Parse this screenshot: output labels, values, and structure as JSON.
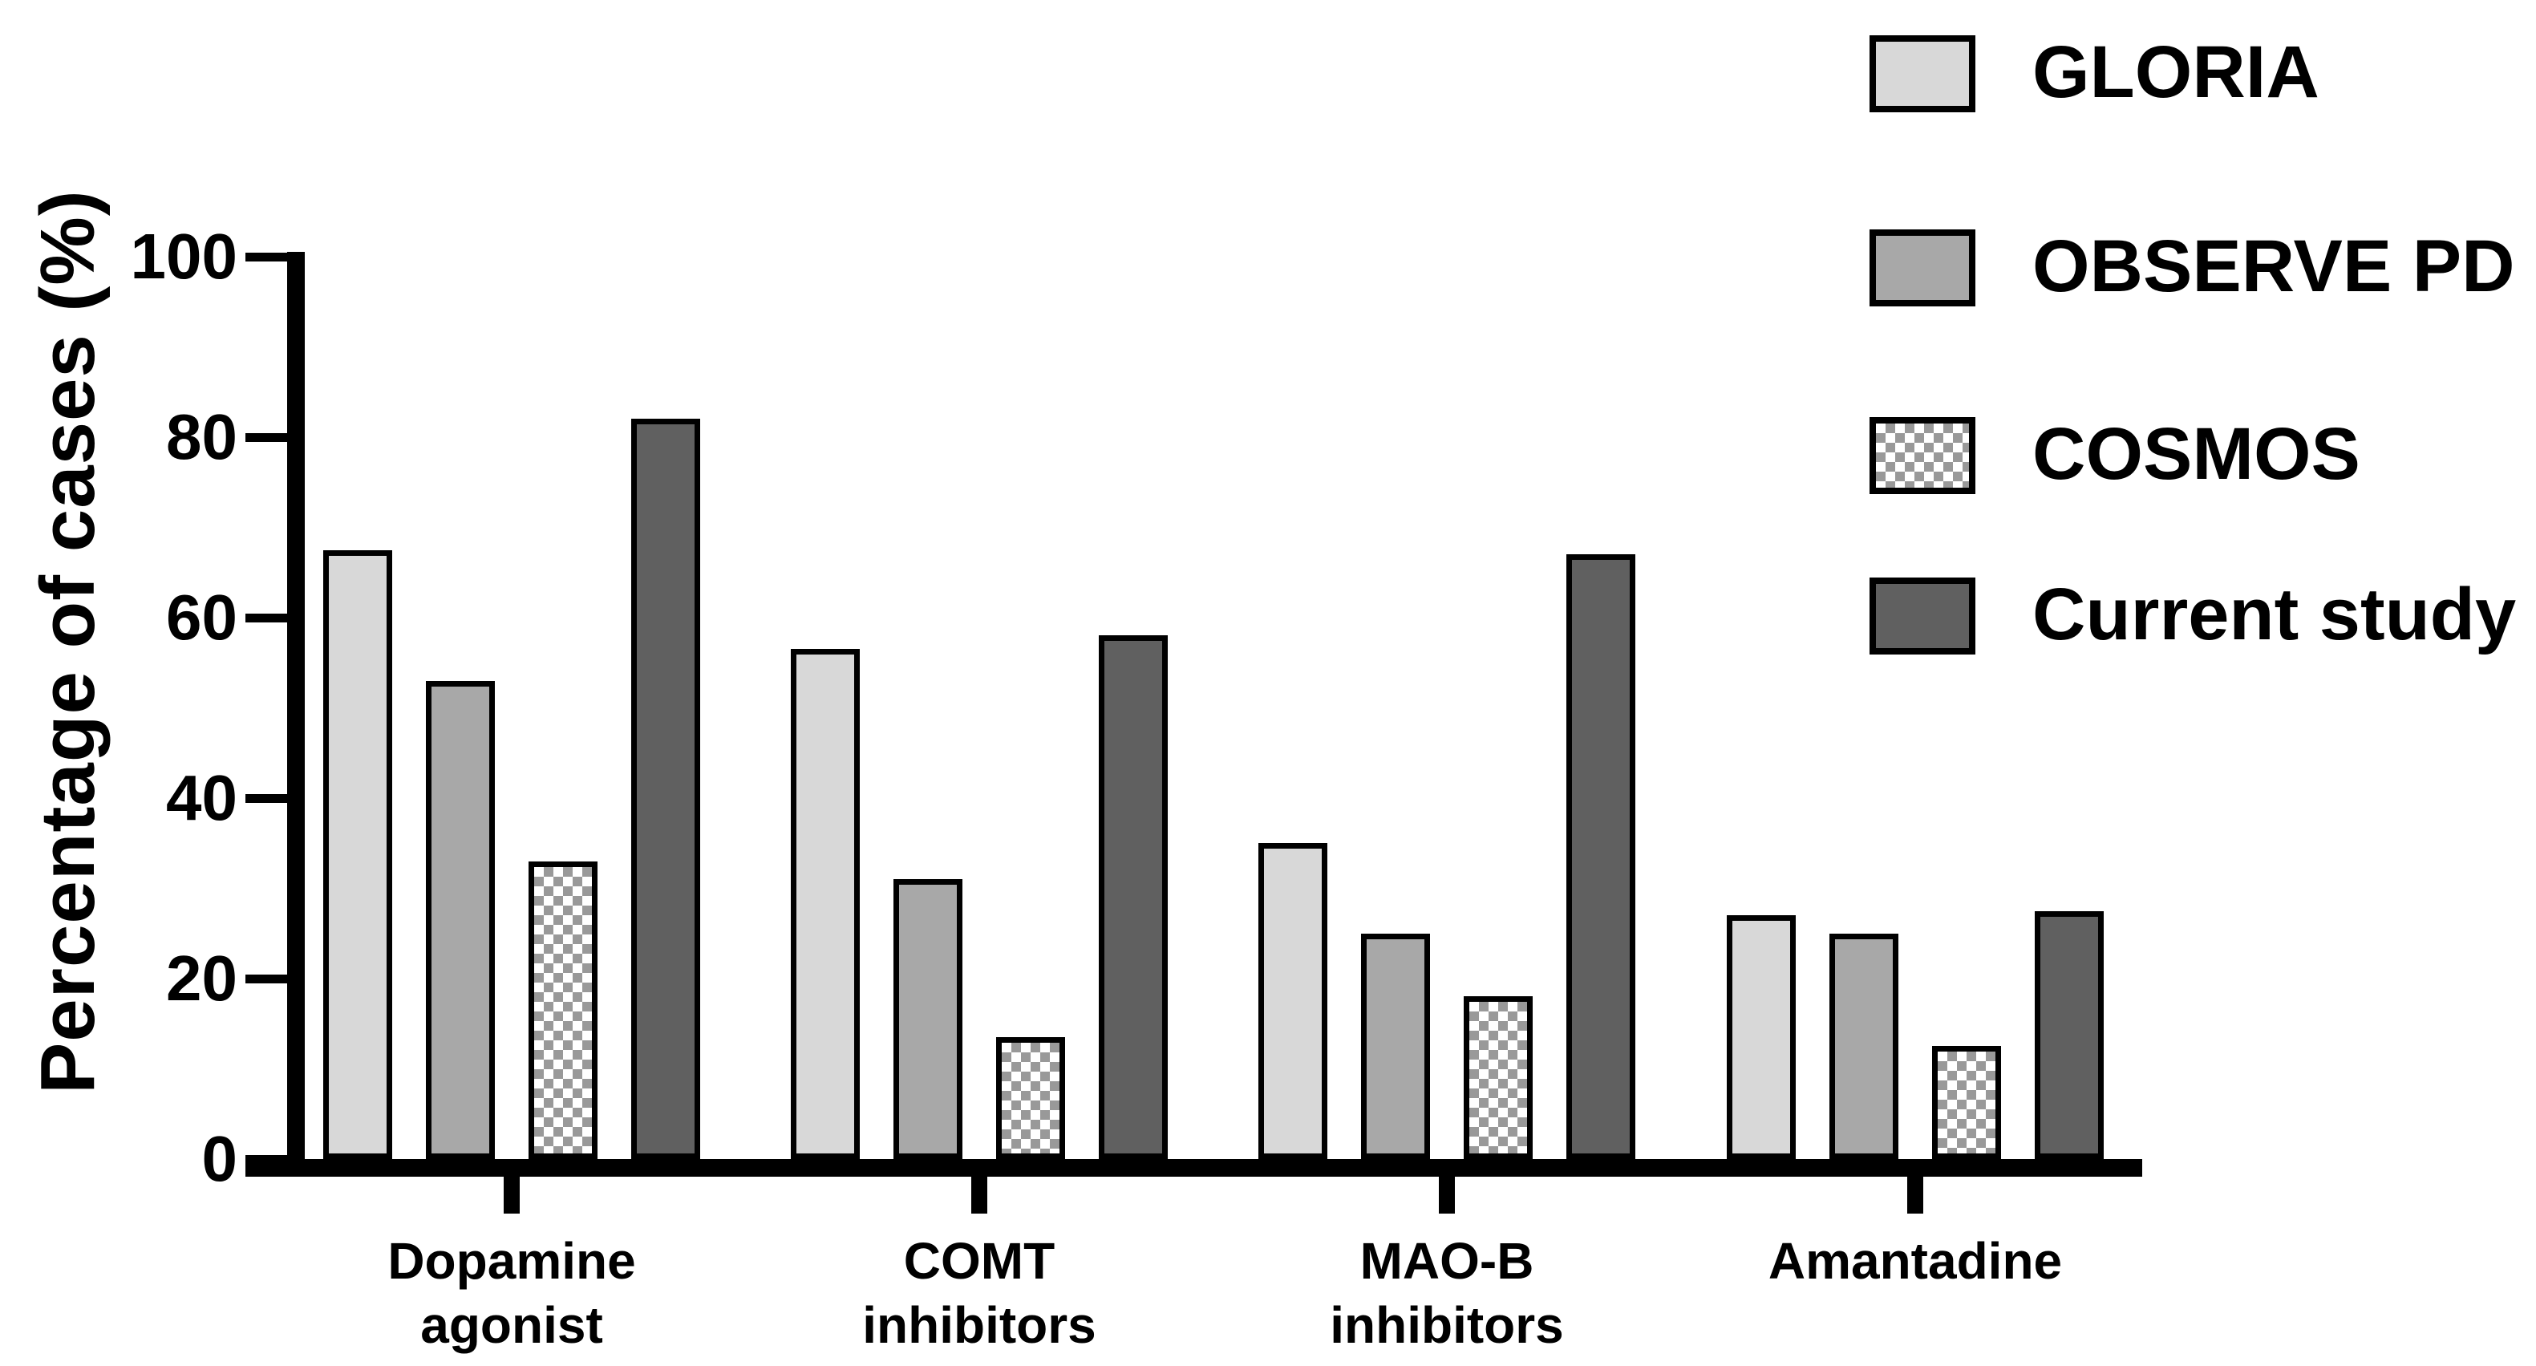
{
  "figure": {
    "background_color": "#ffffff",
    "axis_color": "#000000",
    "text_color": "#000000"
  },
  "chart_data": {
    "type": "bar",
    "title": "",
    "xlabel": "",
    "ylabel": "Percentage of cases (%)",
    "ylim": [
      0,
      100
    ],
    "yticks": [
      0,
      20,
      40,
      60,
      80,
      100
    ],
    "grid": false,
    "legend_position": "top-right",
    "categories": [
      "Dopamine agonist",
      "COMT inhibitors",
      "MAO-B inhibitors",
      "Amantadine"
    ],
    "category_label_lines": [
      [
        "Dopamine",
        "agonist"
      ],
      [
        "COMT",
        "inhibitors"
      ],
      [
        "MAO-B",
        "inhibitors"
      ],
      [
        "Amantadine"
      ]
    ],
    "series": [
      {
        "name": "GLORIA",
        "fill": "#d8d8d8",
        "pattern": "solid",
        "values": [
          67.5,
          56.5,
          35,
          27
        ]
      },
      {
        "name": "OBSERVE PD",
        "fill": "#a8a8a8",
        "pattern": "solid",
        "values": [
          53,
          31,
          25,
          25
        ]
      },
      {
        "name": "COSMOS",
        "fill": "#ffffff",
        "pattern": "checker",
        "pattern_color": "#999999",
        "values": [
          33,
          13.5,
          18,
          12.5
        ]
      },
      {
        "name": "Current study",
        "fill": "#606060",
        "pattern": "solid",
        "values": [
          82,
          58,
          67,
          27.5
        ]
      }
    ]
  }
}
